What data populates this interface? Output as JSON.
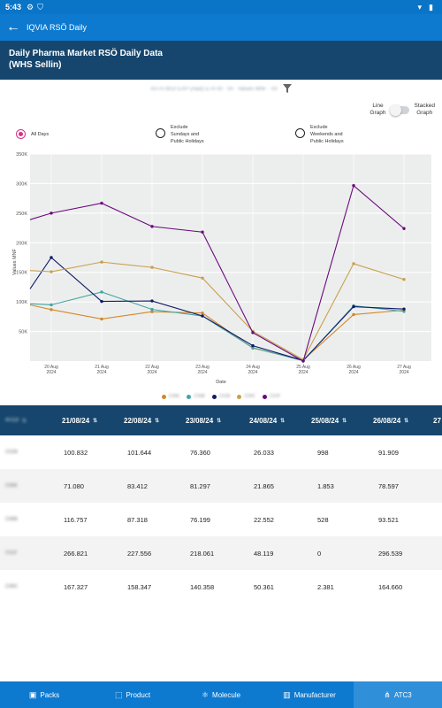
{
  "status_bar": {
    "time": "5:43",
    "icons": [
      "gear-icon",
      "shield-icon",
      "wifi-icon",
      "battery-icon"
    ]
  },
  "app_bar": {
    "title": "IQVIA RSÖ Daily",
    "back_icon": "arrow-left-icon"
  },
  "report": {
    "title_line1": "Daily Pharma Market RSÖ Daily Data",
    "title_line2": "(WHS Sellin)"
  },
  "filter": {
    "text": "A07A 0610 EXP (A&B) ETA 00 · 00 · Values MNF · 00",
    "icon": "filter-icon"
  },
  "toggle": {
    "left_label_1": "Line",
    "left_label_2": "Graph",
    "right_label_1": "Stacked",
    "right_label_2": "Graph"
  },
  "radios": [
    {
      "lines": [
        "All Days"
      ],
      "selected": true
    },
    {
      "lines": [
        "Exclude",
        "Sundays and",
        "Public Holidays"
      ],
      "selected": false
    },
    {
      "lines": [
        "Exclude",
        "Weekends and",
        "Public Holidays"
      ],
      "selected": false
    }
  ],
  "chart_data": {
    "type": "line",
    "xlabel": "Date",
    "ylabel": "Values MNF",
    "ylim": [
      0,
      350000
    ],
    "yticks": [
      "50K",
      "100K",
      "150K",
      "200K",
      "250K",
      "300K",
      "350K"
    ],
    "categories": [
      [
        "20 Aug",
        "2024"
      ],
      [
        "21 Aug",
        "2024"
      ],
      [
        "22 Aug",
        "2024"
      ],
      [
        "23 Aug",
        "2024"
      ],
      [
        "24 Aug",
        "2024"
      ],
      [
        "25 Aug",
        "2024"
      ],
      [
        "26 Aug",
        "2024"
      ],
      [
        "27 Aug",
        "2024"
      ]
    ],
    "grid": true,
    "legend_position": "bottom-center",
    "series": [
      {
        "color": "#d4872a",
        "legend_text": "C06E",
        "start": 95000,
        "values": [
          87000,
          71080,
          83412,
          81297,
          21865,
          1853,
          78597,
          86000
        ]
      },
      {
        "color": "#43a5a3",
        "legend_text": "C06B",
        "start": 97000,
        "values": [
          95000,
          116757,
          87318,
          76199,
          22552,
          528,
          93521,
          84000
        ]
      },
      {
        "color": "#101a6a",
        "legend_text": "C01B",
        "start": 122000,
        "values": [
          175000,
          100832,
          101644,
          76360,
          26033,
          998,
          91909,
          88000
        ]
      },
      {
        "color": "#c9a04d",
        "legend_text": "C09C",
        "start": 153000,
        "values": [
          151000,
          167327,
          158347,
          140358,
          50361,
          2381,
          164660,
          138000
        ]
      },
      {
        "color": "#6c0a7e",
        "legend_text": "C01F",
        "start": 239000,
        "values": [
          250000,
          266821,
          227556,
          218061,
          48119,
          0,
          296539,
          224000
        ]
      }
    ]
  },
  "table": {
    "header_first": "ATC3",
    "columns": [
      "21/08/24",
      "22/08/24",
      "23/08/24",
      "24/08/24",
      "25/08/24",
      "26/08/24",
      "27"
    ],
    "rows": [
      {
        "label": "C01B",
        "values": [
          "100.832",
          "101.644",
          "76.360",
          "26.033",
          "998",
          "91.909"
        ]
      },
      {
        "label": "C06E",
        "values": [
          "71.080",
          "83.412",
          "81.297",
          "21.865",
          "1.853",
          "78.597"
        ]
      },
      {
        "label": "C06B",
        "values": [
          "116.757",
          "87.318",
          "76.199",
          "22.552",
          "528",
          "93.521"
        ]
      },
      {
        "label": "C01F",
        "values": [
          "266.821",
          "227.556",
          "218.061",
          "48.119",
          "0",
          "296.539"
        ]
      },
      {
        "label": "C09C",
        "values": [
          "167.327",
          "158.347",
          "140.358",
          "50.361",
          "2.381",
          "164.660"
        ]
      }
    ]
  },
  "bottom_nav": [
    {
      "label": "Packs",
      "icon": "packs-icon",
      "active": false
    },
    {
      "label": "Product",
      "icon": "product-icon",
      "active": false
    },
    {
      "label": "Molecule",
      "icon": "molecule-icon",
      "active": false
    },
    {
      "label": "Manufacturer",
      "icon": "building-icon",
      "active": false
    },
    {
      "label": "ATC3",
      "icon": "atc-tree-icon",
      "active": true
    }
  ]
}
